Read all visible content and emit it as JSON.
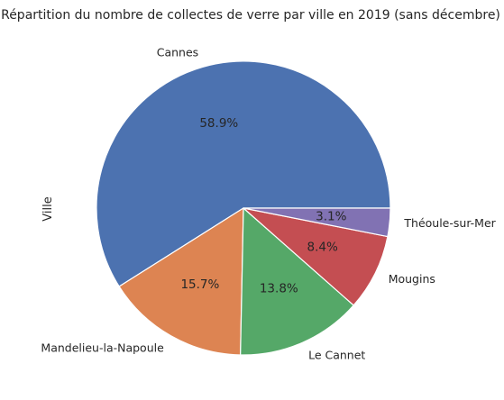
{
  "chart_data": {
    "type": "pie",
    "title": "Répartition du nombre de collectes de verre par ville en 2019 (sans décembre)",
    "ylabel": "Ville",
    "start_angle_deg": 0,
    "direction": "counterclockwise",
    "slices": [
      {
        "label": "Cannes",
        "value": 58.9,
        "pct_text": "58.9%",
        "color": "#4c72b0"
      },
      {
        "label": "Mandelieu-la-Napoule",
        "value": 15.7,
        "pct_text": "15.7%",
        "color": "#dd8452"
      },
      {
        "label": "Le Cannet",
        "value": 13.8,
        "pct_text": "13.8%",
        "color": "#55a868"
      },
      {
        "label": "Mougins",
        "value": 8.4,
        "pct_text": "8.4%",
        "color": "#c44e52"
      },
      {
        "label": "Théoule-sur-Mer",
        "value": 3.1,
        "pct_text": "3.1%",
        "color": "#8172b3"
      }
    ]
  }
}
